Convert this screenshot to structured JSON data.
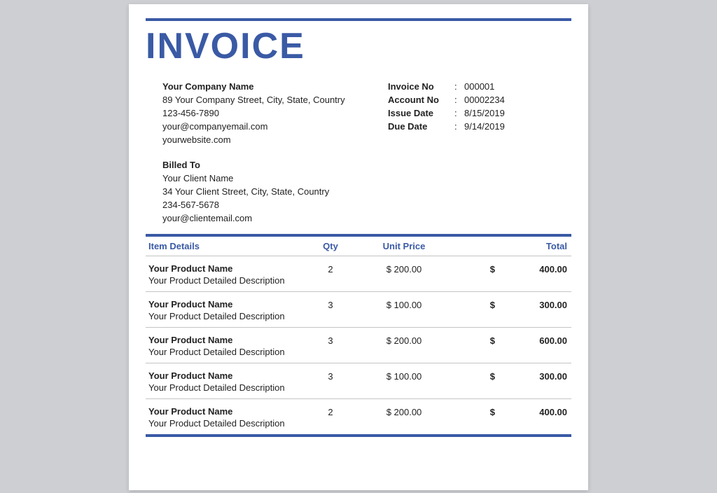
{
  "title": "INVOICE",
  "accent_color": "#3a5aa5",
  "company": {
    "name": "Your Company Name",
    "address": "89 Your Company Street, City, State, Country",
    "phone": "123-456-7890",
    "email": "your@companyemail.com",
    "website": "yourwebsite.com"
  },
  "meta": {
    "invoice_no_label": "Invoice No",
    "invoice_no": "000001",
    "account_no_label": "Account No",
    "account_no": "00002234",
    "issue_date_label": "Issue Date",
    "issue_date": "8/15/2019",
    "due_date_label": "Due Date",
    "due_date": "9/14/2019",
    "colon": ":"
  },
  "billed": {
    "title": "Billed To",
    "name": "Your Client Name",
    "address": "34 Your Client Street, City, State, Country",
    "phone": "234-567-5678",
    "email": "your@clientemail.com"
  },
  "table": {
    "headers": {
      "item": "Item Details",
      "qty": "Qty",
      "unit_price": "Unit Price",
      "total": "Total"
    },
    "currency": "$",
    "rows": [
      {
        "name": "Your Product Name",
        "desc": "Your Product Detailed Description",
        "qty": "2",
        "unit_price": "$ 200.00",
        "currency": "$",
        "total": "400.00"
      },
      {
        "name": "Your Product Name",
        "desc": "Your Product Detailed Description",
        "qty": "3",
        "unit_price": "$ 100.00",
        "currency": "$",
        "total": "300.00"
      },
      {
        "name": "Your Product Name",
        "desc": "Your Product Detailed Description",
        "qty": "3",
        "unit_price": "$ 200.00",
        "currency": "$",
        "total": "600.00"
      },
      {
        "name": "Your Product Name",
        "desc": "Your Product Detailed Description",
        "qty": "3",
        "unit_price": "$ 100.00",
        "currency": "$",
        "total": "300.00"
      },
      {
        "name": "Your Product Name",
        "desc": "Your Product Detailed Description",
        "qty": "2",
        "unit_price": "$ 200.00",
        "currency": "$",
        "total": "400.00"
      }
    ]
  }
}
